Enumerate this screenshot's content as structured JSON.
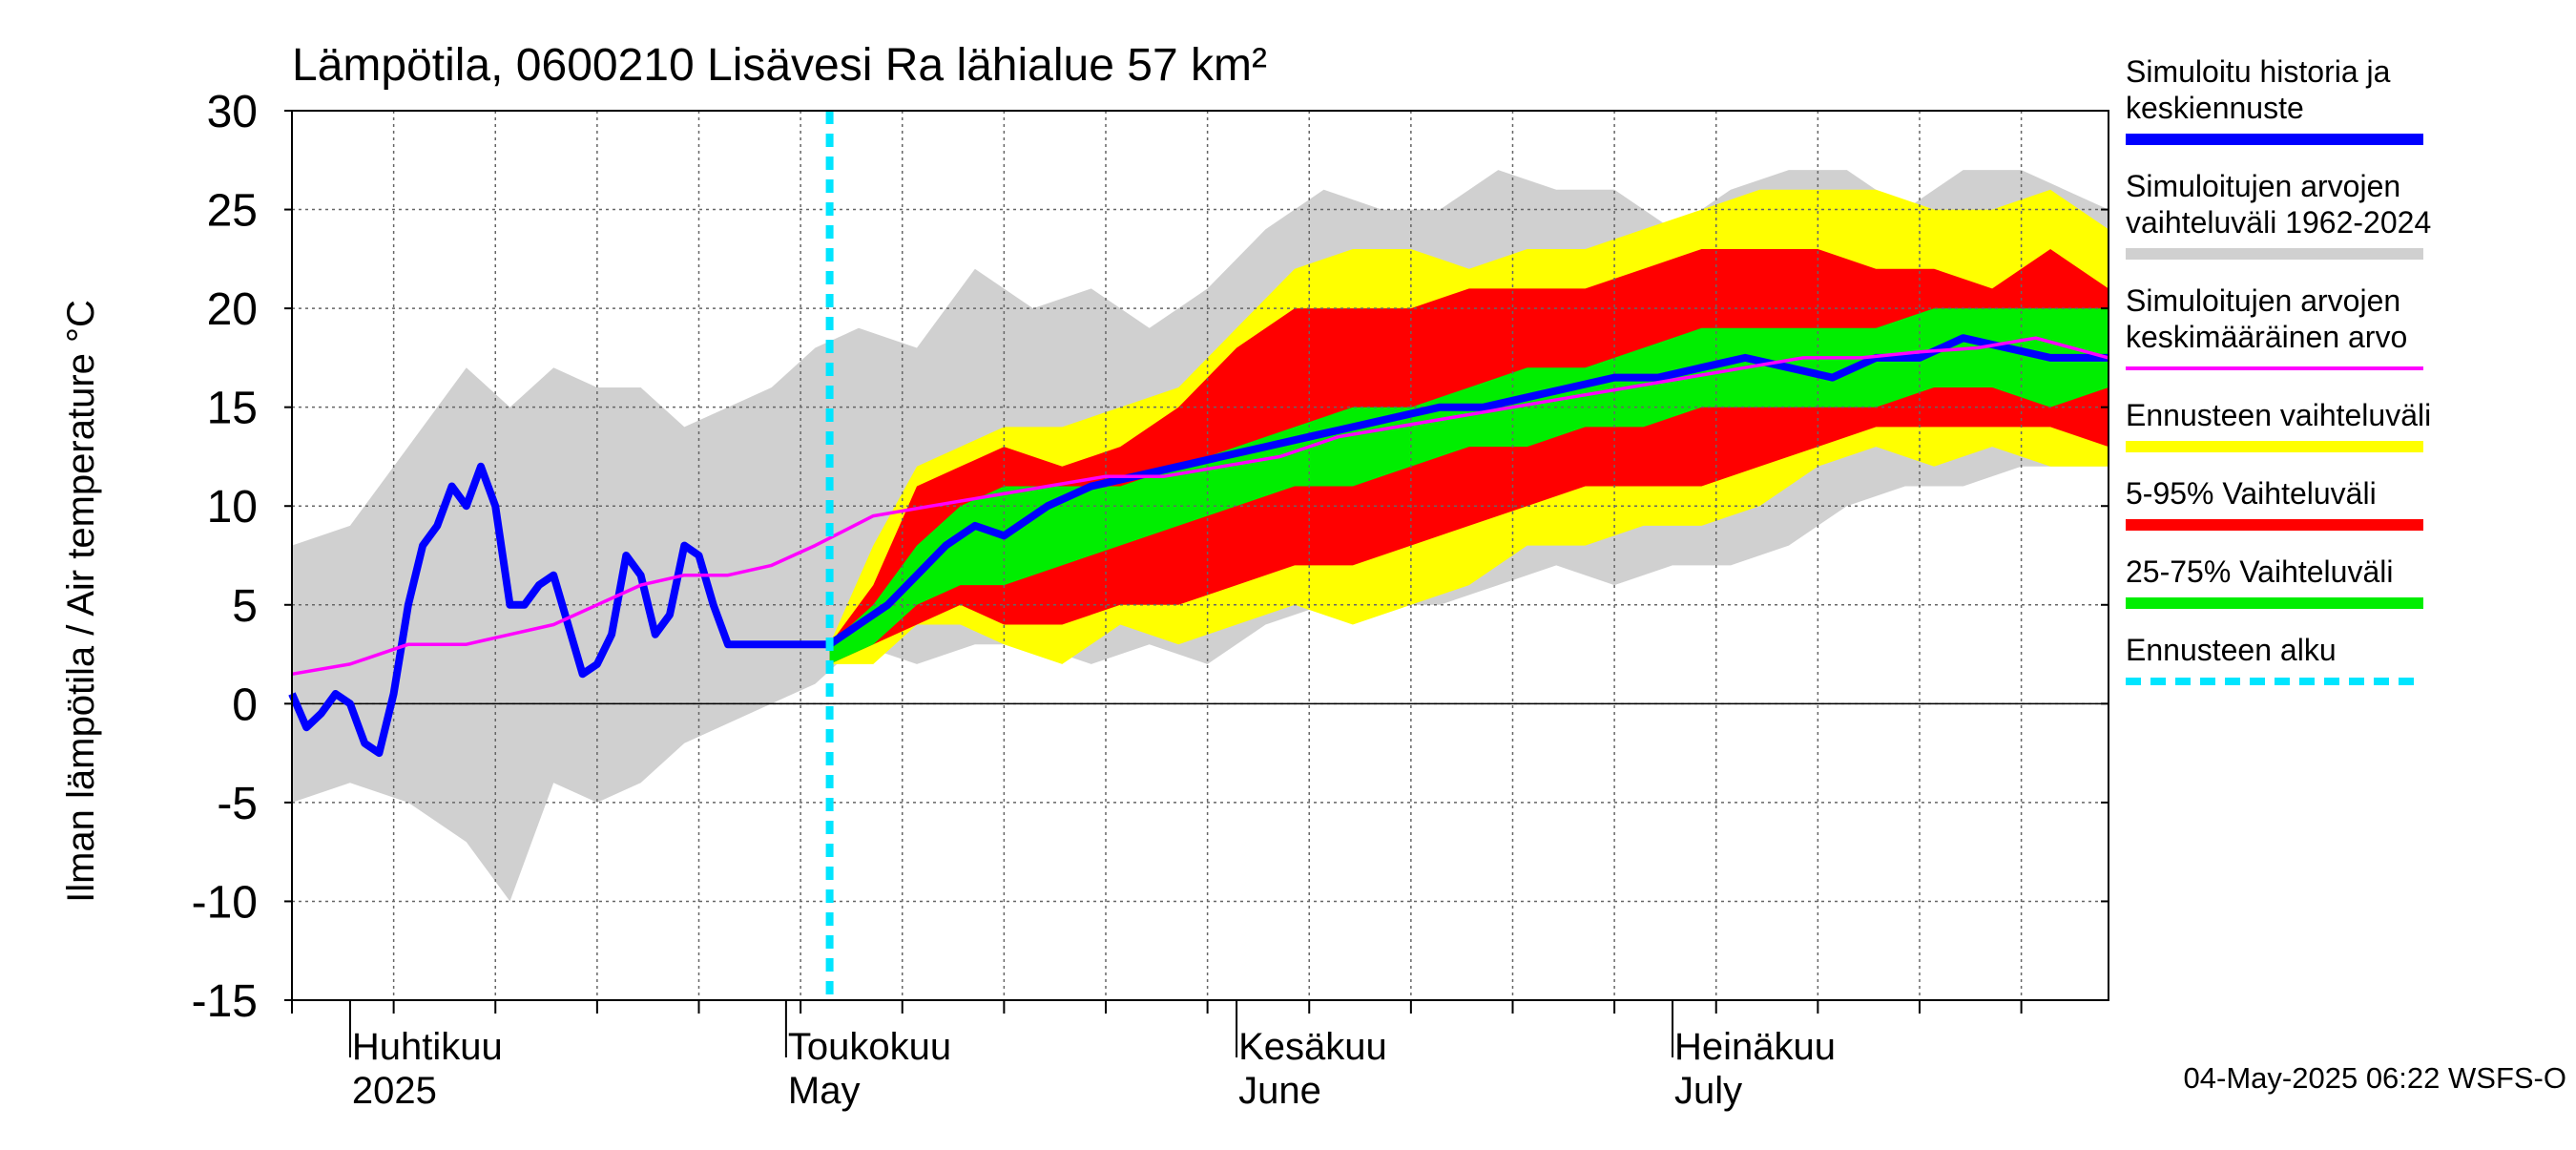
{
  "chart_data": {
    "type": "area",
    "title": "Lämpötila, 0600210 Lisävesi Ra lähialue 57 km²",
    "ylabel": "Ilman lämpötila / Air temperature   °C",
    "ylim": [
      -15,
      30
    ],
    "yticks": [
      -15,
      -10,
      -5,
      0,
      5,
      10,
      15,
      20,
      25,
      30
    ],
    "ytick_labels": [
      "-15",
      "-10",
      "-5",
      "0",
      "5",
      "10",
      "15",
      "20",
      "25",
      "30"
    ],
    "x_start": "2025-03-28",
    "x_end": "2025-07-31",
    "forecast_start": "2025-05-04",
    "grid": true,
    "month_labels": [
      {
        "date": "2025-04-01",
        "fi": "Huhtikuu",
        "en": "2025"
      },
      {
        "date": "2025-05-01",
        "fi": "Toukokuu",
        "en": "May"
      },
      {
        "date": "2025-06-01",
        "fi": "Kesäkuu",
        "en": "June"
      },
      {
        "date": "2025-07-01",
        "fi": "Heinäkuu",
        "en": "July"
      }
    ],
    "legend_position": "right",
    "legend": [
      {
        "label": "Simuloitu historia ja keskiennuste",
        "lines": [
          "Simuloitu historia ja",
          "keskiennuste"
        ],
        "color": "#0000ff",
        "style": "solid"
      },
      {
        "label": "Simuloitujen arvojen vaihteluväli 1962-2024",
        "lines": [
          "Simuloitujen arvojen",
          "vaihteluväli 1962-2024"
        ],
        "color": "#d0d0d0",
        "style": "solid"
      },
      {
        "label": "Simuloitujen arvojen keskimääräinen arvo",
        "lines": [
          "Simuloitujen arvojen",
          "keskimääräinen arvo"
        ],
        "color": "#ff00ff",
        "style": "solid"
      },
      {
        "label": "Ennusteen vaihteluväli",
        "lines": [
          "Ennusteen vaihteluväli"
        ],
        "color": "#ffff00",
        "style": "solid"
      },
      {
        "label": "5-95% Vaihteluväli",
        "lines": [
          "5-95% Vaihteluväli"
        ],
        "color": "#ff0000",
        "style": "solid"
      },
      {
        "label": "25-75% Vaihteluväli",
        "lines": [
          "25-75% Vaihteluväli"
        ],
        "color": "#00ee00",
        "style": "solid"
      },
      {
        "label": "Ennusteen alku",
        "lines": [
          "Ennusteen alku"
        ],
        "color": "#00e5ff",
        "style": "dashed"
      }
    ],
    "series": {
      "history_range": {
        "x": [
          "2025-03-28",
          "2025-04-01",
          "2025-04-05",
          "2025-04-09",
          "2025-04-12",
          "2025-04-15",
          "2025-04-18",
          "2025-04-21",
          "2025-04-24",
          "2025-04-27",
          "2025-04-30",
          "2025-05-03",
          "2025-05-06",
          "2025-05-10",
          "2025-05-14",
          "2025-05-18",
          "2025-05-22",
          "2025-05-26",
          "2025-05-30",
          "2025-06-03",
          "2025-06-07",
          "2025-06-11",
          "2025-06-15",
          "2025-06-19",
          "2025-06-23",
          "2025-06-27",
          "2025-07-01",
          "2025-07-05",
          "2025-07-09",
          "2025-07-13",
          "2025-07-17",
          "2025-07-21",
          "2025-07-25",
          "2025-07-31"
        ],
        "upper": [
          8,
          9,
          13,
          17,
          15,
          17,
          16,
          16,
          14,
          15,
          16,
          18,
          19,
          18,
          22,
          20,
          21,
          19,
          21,
          24,
          26,
          25,
          25,
          27,
          26,
          26,
          24,
          26,
          27,
          27,
          25,
          27,
          27,
          25
        ],
        "lower": [
          -5,
          -4,
          -5,
          -7,
          -10,
          -4,
          -5,
          -4,
          -2,
          -1,
          0,
          1,
          3,
          2,
          3,
          3,
          2,
          3,
          2,
          4,
          5,
          5,
          5,
          6,
          7,
          6,
          7,
          7,
          8,
          10,
          11,
          11,
          12,
          12
        ]
      },
      "forecast_range": {
        "x": [
          "2025-05-04",
          "2025-05-07",
          "2025-05-10",
          "2025-05-13",
          "2025-05-16",
          "2025-05-20",
          "2025-05-24",
          "2025-05-28",
          "2025-06-01",
          "2025-06-05",
          "2025-06-09",
          "2025-06-13",
          "2025-06-17",
          "2025-06-21",
          "2025-06-25",
          "2025-06-29",
          "2025-07-03",
          "2025-07-07",
          "2025-07-11",
          "2025-07-15",
          "2025-07-19",
          "2025-07-23",
          "2025-07-27",
          "2025-07-31"
        ],
        "upper": [
          3,
          8,
          12,
          13,
          14,
          14,
          15,
          16,
          19,
          22,
          23,
          23,
          22,
          23,
          23,
          24,
          25,
          26,
          26,
          26,
          25,
          25,
          26,
          24
        ],
        "lower": [
          2,
          2,
          4,
          4,
          3,
          2,
          4,
          3,
          4,
          5,
          4,
          5,
          6,
          8,
          8,
          9,
          9,
          10,
          12,
          13,
          12,
          13,
          12,
          12
        ]
      },
      "p5_95": {
        "x": [
          "2025-05-04",
          "2025-05-07",
          "2025-05-10",
          "2025-05-13",
          "2025-05-16",
          "2025-05-20",
          "2025-05-24",
          "2025-05-28",
          "2025-06-01",
          "2025-06-05",
          "2025-06-09",
          "2025-06-13",
          "2025-06-17",
          "2025-06-21",
          "2025-06-25",
          "2025-06-29",
          "2025-07-03",
          "2025-07-07",
          "2025-07-11",
          "2025-07-15",
          "2025-07-19",
          "2025-07-23",
          "2025-07-27",
          "2025-07-31"
        ],
        "upper": [
          3,
          6,
          11,
          12,
          13,
          12,
          13,
          15,
          18,
          20,
          20,
          20,
          21,
          21,
          21,
          22,
          23,
          23,
          23,
          22,
          22,
          21,
          23,
          21
        ],
        "lower": [
          2,
          3,
          4,
          5,
          4,
          4,
          5,
          5,
          6,
          7,
          7,
          8,
          9,
          10,
          11,
          11,
          11,
          12,
          13,
          14,
          14,
          14,
          14,
          13
        ]
      },
      "p25_75": {
        "x": [
          "2025-05-04",
          "2025-05-07",
          "2025-05-10",
          "2025-05-13",
          "2025-05-16",
          "2025-05-20",
          "2025-05-24",
          "2025-05-28",
          "2025-06-01",
          "2025-06-05",
          "2025-06-09",
          "2025-06-13",
          "2025-06-17",
          "2025-06-21",
          "2025-06-25",
          "2025-06-29",
          "2025-07-03",
          "2025-07-07",
          "2025-07-11",
          "2025-07-15",
          "2025-07-19",
          "2025-07-23",
          "2025-07-27",
          "2025-07-31"
        ],
        "upper": [
          3,
          5,
          8,
          10,
          11,
          11,
          11,
          12,
          13,
          14,
          15,
          15,
          16,
          17,
          17,
          18,
          19,
          19,
          19,
          19,
          20,
          20,
          20,
          20
        ],
        "lower": [
          2,
          3,
          5,
          6,
          6,
          7,
          8,
          9,
          10,
          11,
          11,
          12,
          13,
          13,
          14,
          14,
          15,
          15,
          15,
          15,
          16,
          16,
          15,
          16
        ]
      },
      "mean": {
        "name": "Simuloitujen arvojen keskimääräinen arvo",
        "x": [
          "2025-03-28",
          "2025-04-01",
          "2025-04-05",
          "2025-04-09",
          "2025-04-12",
          "2025-04-15",
          "2025-04-18",
          "2025-04-21",
          "2025-04-24",
          "2025-04-27",
          "2025-04-30",
          "2025-05-03",
          "2025-05-07",
          "2025-05-11",
          "2025-05-15",
          "2025-05-19",
          "2025-05-23",
          "2025-05-27",
          "2025-05-31",
          "2025-06-04",
          "2025-06-08",
          "2025-06-12",
          "2025-06-16",
          "2025-06-20",
          "2025-06-24",
          "2025-06-28",
          "2025-07-02",
          "2025-07-06",
          "2025-07-10",
          "2025-07-14",
          "2025-07-18",
          "2025-07-22",
          "2025-07-26",
          "2025-07-31"
        ],
        "y": [
          1.5,
          2,
          3,
          3,
          3.5,
          4,
          5,
          6,
          6.5,
          6.5,
          7,
          8,
          9.5,
          10,
          10.5,
          11,
          11.5,
          11.5,
          12,
          12.5,
          13.5,
          14,
          14.5,
          15,
          15.5,
          16,
          16.5,
          17,
          17.5,
          17.5,
          17.8,
          18,
          18.5,
          17.5
        ]
      },
      "history": {
        "name": "Simuloitu historia ja keskiennuste",
        "x": [
          "2025-03-28",
          "2025-03-29",
          "2025-03-30",
          "2025-03-31",
          "2025-04-01",
          "2025-04-02",
          "2025-04-03",
          "2025-04-04",
          "2025-04-05",
          "2025-04-06",
          "2025-04-07",
          "2025-04-08",
          "2025-04-09",
          "2025-04-10",
          "2025-04-11",
          "2025-04-12",
          "2025-04-13",
          "2025-04-14",
          "2025-04-15",
          "2025-04-16",
          "2025-04-17",
          "2025-04-18",
          "2025-04-19",
          "2025-04-20",
          "2025-04-21",
          "2025-04-22",
          "2025-04-23",
          "2025-04-24",
          "2025-04-25",
          "2025-04-26",
          "2025-04-27",
          "2025-04-28",
          "2025-04-29",
          "2025-04-30",
          "2025-05-01",
          "2025-05-02",
          "2025-05-03",
          "2025-05-04"
        ],
        "y": [
          0.5,
          -1.2,
          -0.5,
          0.5,
          0,
          -2,
          -2.5,
          0.5,
          5,
          8,
          9,
          11,
          10,
          12,
          10,
          5,
          5,
          6,
          6.5,
          4,
          1.5,
          2,
          3.5,
          7.5,
          6.5,
          3.5,
          4.5,
          8,
          7.5,
          5,
          3,
          3,
          3,
          3,
          3,
          3,
          3,
          3
        ]
      },
      "forecast_median": {
        "name": "Simuloitu historia ja keskiennuste",
        "x": [
          "2025-05-04",
          "2025-05-06",
          "2025-05-08",
          "2025-05-10",
          "2025-05-12",
          "2025-05-14",
          "2025-05-16",
          "2025-05-19",
          "2025-05-22",
          "2025-05-25",
          "2025-05-28",
          "2025-05-31",
          "2025-06-03",
          "2025-06-06",
          "2025-06-09",
          "2025-06-12",
          "2025-06-15",
          "2025-06-18",
          "2025-06-21",
          "2025-06-24",
          "2025-06-27",
          "2025-06-30",
          "2025-07-03",
          "2025-07-06",
          "2025-07-09",
          "2025-07-12",
          "2025-07-15",
          "2025-07-18",
          "2025-07-21",
          "2025-07-24",
          "2025-07-27",
          "2025-07-31"
        ],
        "y": [
          3,
          4,
          5,
          6.5,
          8,
          9,
          8.5,
          10,
          11,
          11.5,
          12,
          12.5,
          13,
          13.5,
          14,
          14.5,
          15,
          15,
          15.5,
          16,
          16.5,
          16.5,
          17,
          17.5,
          17,
          16.5,
          17.5,
          17.5,
          18.5,
          18,
          17.5,
          17.5
        ]
      }
    },
    "footer": "04-May-2025 06:22 WSFS-O"
  }
}
